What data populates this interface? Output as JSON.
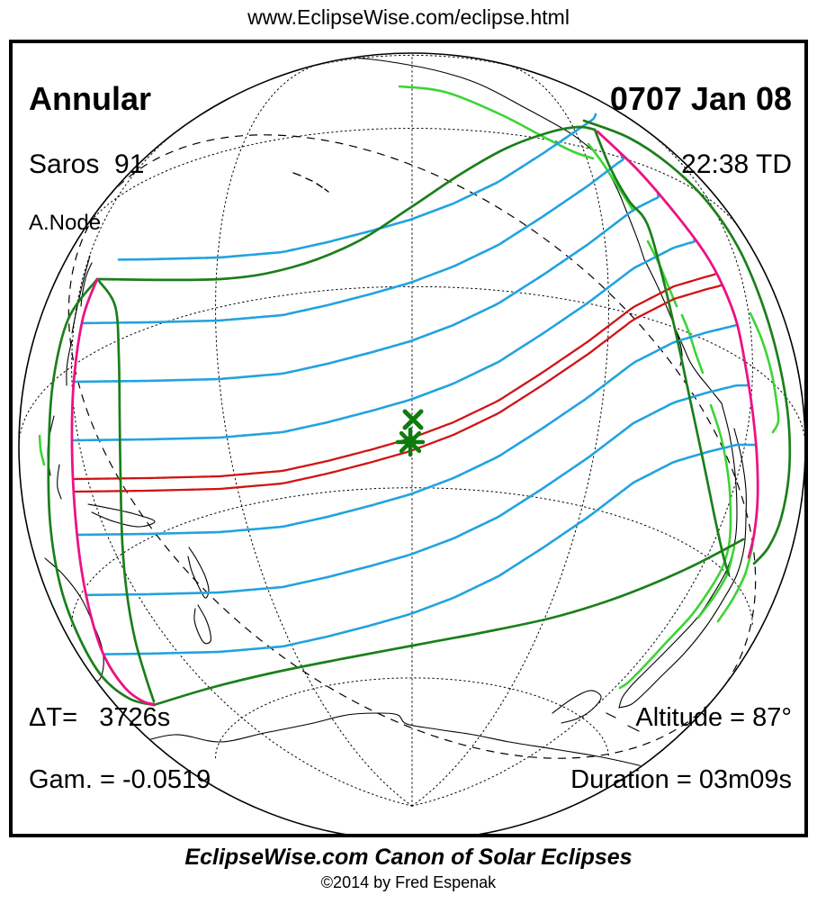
{
  "header": {
    "url": "www.EclipseWise.com/eclipse.html"
  },
  "map": {
    "eclipse_type": "Annular",
    "saros": "Saros  91",
    "node": "A.Node",
    "date": "0707 Jan 08",
    "time": "22:38 TD",
    "delta_t": "ΔT=   3726s",
    "gamma": "Gam. = -0.0519",
    "altitude": "Altitude = 87°",
    "duration": "Duration = 03m09s"
  },
  "footer": {
    "title": "EclipseWise.com Canon of Solar Eclipses",
    "copyright": "©2014 by Fred Espenak"
  },
  "colors": {
    "frame": "#000000",
    "globe_outline": "#000000",
    "graticule": "#000000",
    "coastline": "#000000",
    "penumbral_limit_green": "#1b7f1b",
    "coast_highlight_green": "#3cd435",
    "max_eclipse_blue": "#22a3df",
    "central_path_red": "#d01414",
    "rise_set_magenta": "#ec1285",
    "marker_green": "#0d7c0d"
  },
  "markers": {
    "greatest_eclipse": "asterisk-marker",
    "sub_solar_point": "x-marker"
  }
}
